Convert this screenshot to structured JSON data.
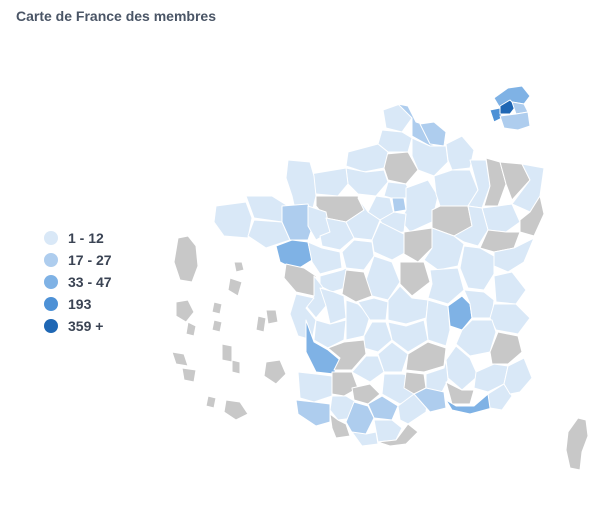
{
  "title": "Carte de France des membres",
  "colors": {
    "c1": "#d9e8f7",
    "c2": "#aecdee",
    "c3": "#7fb2e5",
    "c4": "#4d91d6",
    "c5": "#1f67b4",
    "nodata": "#c8c8c8"
  },
  "legend": [
    {
      "label": "1 - 12",
      "color": "#d9e8f7"
    },
    {
      "label": "17 - 27",
      "color": "#aecdee"
    },
    {
      "label": "33 - 47",
      "color": "#7fb2e5"
    },
    {
      "label": "193",
      "color": "#4d91d6"
    },
    {
      "label": "359 +",
      "color": "#1f67b4"
    }
  ]
}
